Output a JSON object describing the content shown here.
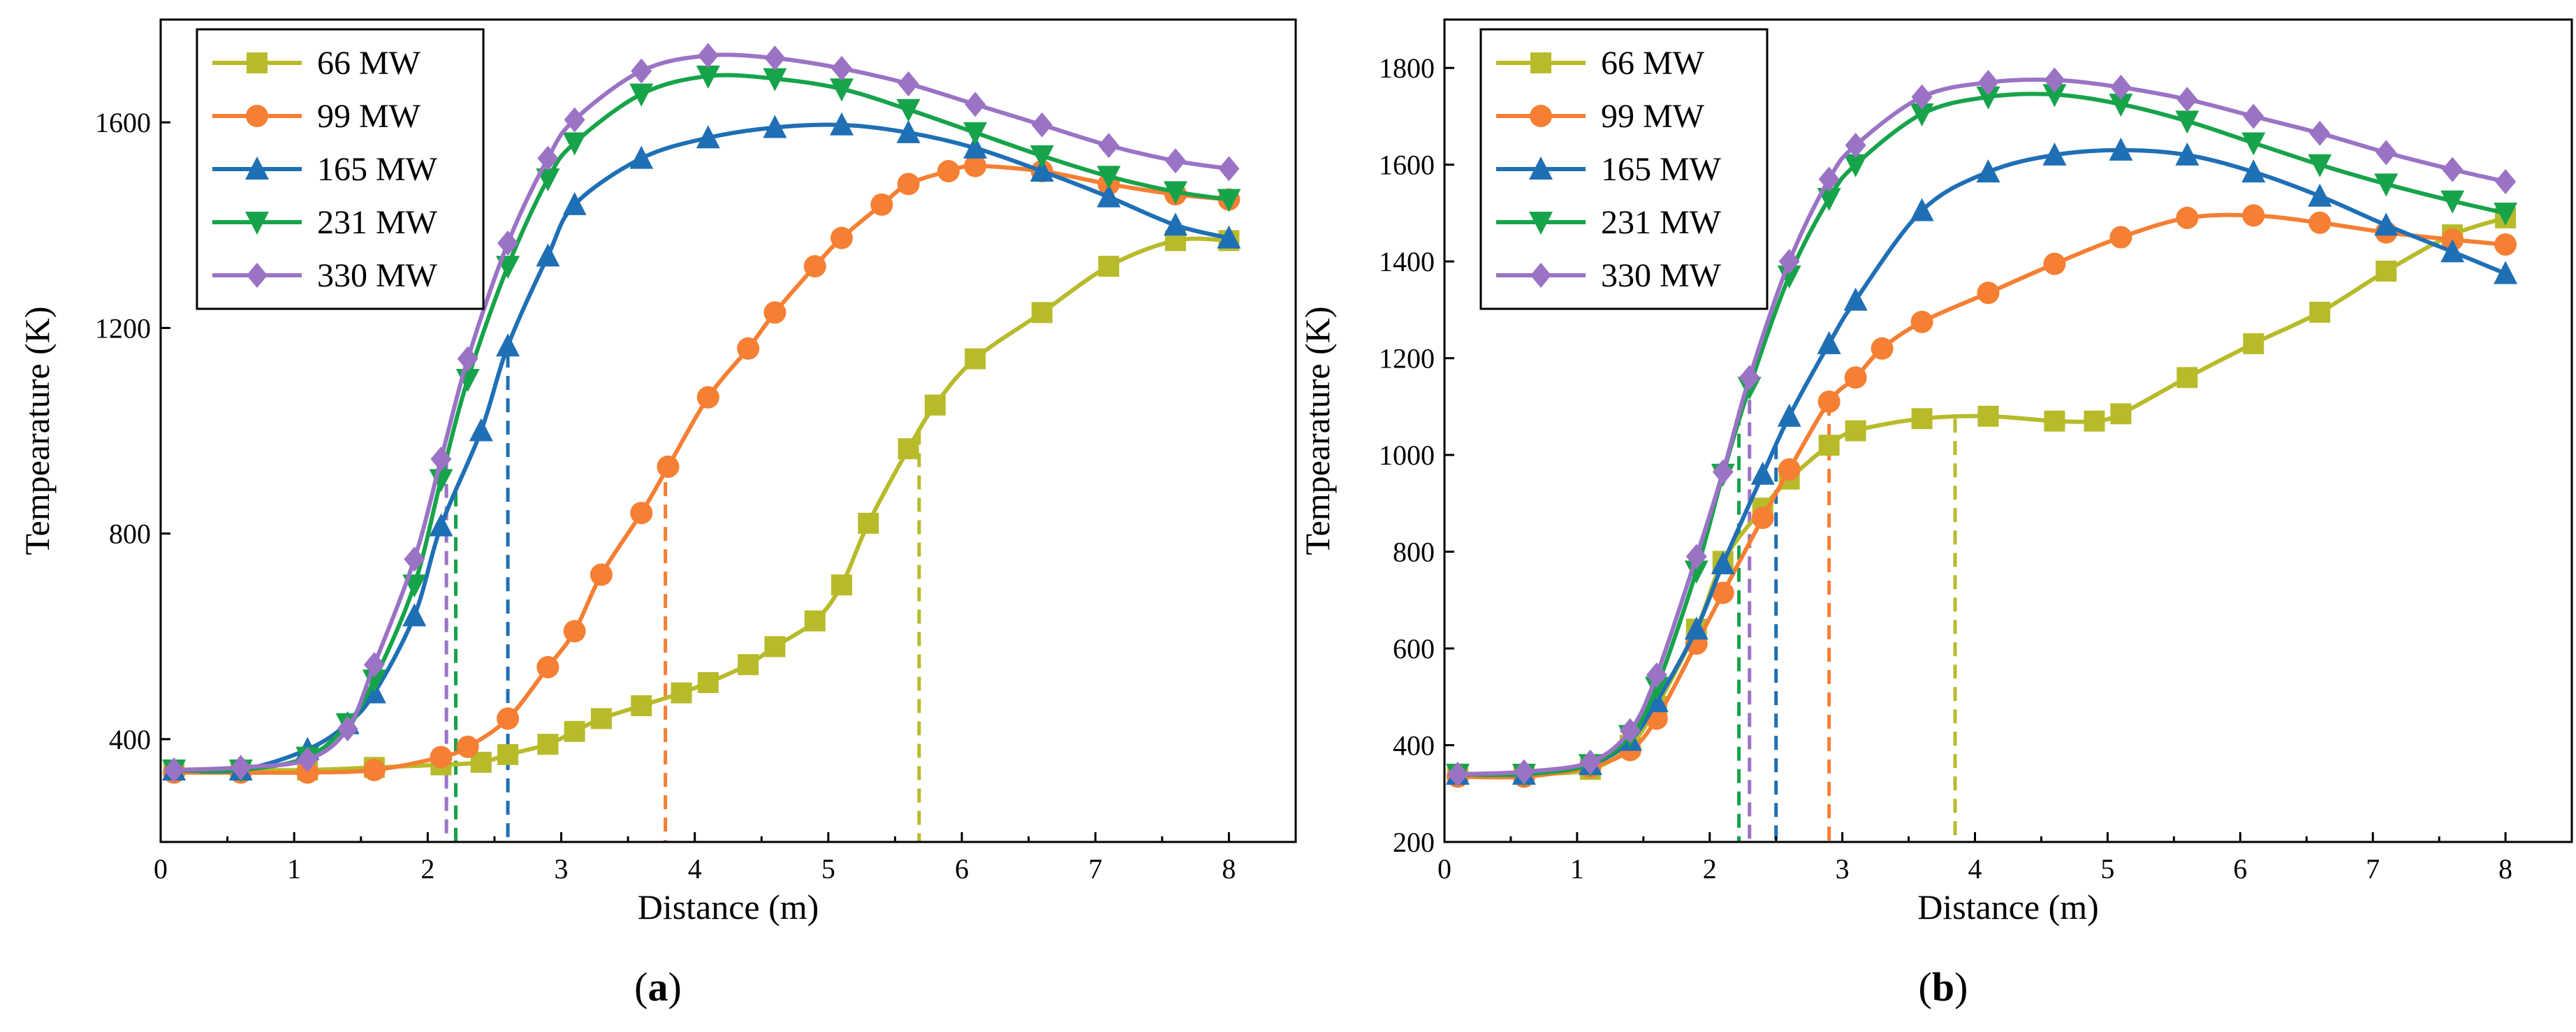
{
  "chart_data": [
    {
      "type": "line",
      "panel_label": "a",
      "xlabel": "Distance (m)",
      "ylabel": "Tempearature (K)",
      "xlim": [
        0,
        8.5
      ],
      "ylim": [
        200,
        1800
      ],
      "xticks": [
        0,
        1,
        2,
        3,
        4,
        5,
        6,
        7,
        8
      ],
      "yticks": [
        400,
        800,
        1200,
        1600
      ],
      "legend_position": "top-left",
      "series": [
        {
          "name": "66 MW",
          "color": "#b7bb2a",
          "marker": "square",
          "x": [
            0.1,
            0.6,
            1.1,
            1.6,
            2.1,
            2.4,
            2.6,
            2.9,
            3.1,
            3.3,
            3.6,
            3.9,
            4.1,
            4.4,
            4.6,
            4.9,
            5.1,
            5.3,
            5.6,
            5.8,
            6.1,
            6.6,
            7.1,
            7.6,
            8.0
          ],
          "y": [
            340,
            340,
            340,
            345,
            350,
            355,
            370,
            390,
            415,
            440,
            465,
            490,
            510,
            545,
            580,
            630,
            700,
            820,
            965,
            1050,
            1140,
            1230,
            1320,
            1370,
            1370
          ]
        },
        {
          "name": "99 MW",
          "color": "#f57f33",
          "marker": "circle",
          "x": [
            0.1,
            0.6,
            1.1,
            1.6,
            2.1,
            2.3,
            2.6,
            2.9,
            3.1,
            3.3,
            3.6,
            3.8,
            4.1,
            4.4,
            4.6,
            4.9,
            5.1,
            5.4,
            5.6,
            5.9,
            6.1,
            6.6,
            7.1,
            7.6,
            8.0
          ],
          "y": [
            335,
            335,
            335,
            340,
            365,
            385,
            440,
            540,
            610,
            720,
            840,
            930,
            1065,
            1160,
            1230,
            1320,
            1375,
            1440,
            1480,
            1505,
            1515,
            1505,
            1480,
            1460,
            1450
          ]
        },
        {
          "name": "165 MW",
          "color": "#1f6fb5",
          "marker": "triangle-up",
          "x": [
            0.1,
            0.6,
            1.1,
            1.4,
            1.6,
            1.9,
            2.1,
            2.4,
            2.6,
            2.9,
            3.1,
            3.6,
            4.1,
            4.6,
            5.1,
            5.6,
            6.1,
            6.6,
            7.1,
            7.6,
            8.0
          ],
          "y": [
            340,
            340,
            380,
            430,
            490,
            640,
            815,
            1000,
            1165,
            1340,
            1440,
            1530,
            1570,
            1590,
            1595,
            1580,
            1550,
            1505,
            1455,
            1400,
            1375
          ]
        },
        {
          "name": "231 MW",
          "color": "#17a34a",
          "marker": "triangle-down",
          "x": [
            0.1,
            0.6,
            1.1,
            1.4,
            1.6,
            1.9,
            2.1,
            2.3,
            2.6,
            2.9,
            3.1,
            3.6,
            4.1,
            4.6,
            5.1,
            5.6,
            6.1,
            6.6,
            7.1,
            7.6,
            8.0
          ],
          "y": [
            340,
            340,
            365,
            430,
            515,
            700,
            905,
            1100,
            1320,
            1490,
            1560,
            1655,
            1690,
            1685,
            1665,
            1625,
            1580,
            1535,
            1495,
            1465,
            1450
          ]
        },
        {
          "name": "330 MW",
          "color": "#9b73c5",
          "marker": "diamond",
          "x": [
            0.1,
            0.6,
            1.1,
            1.4,
            1.6,
            1.9,
            2.1,
            2.3,
            2.6,
            2.9,
            3.1,
            3.6,
            4.1,
            4.6,
            5.1,
            5.6,
            6.1,
            6.6,
            7.1,
            7.6,
            8.0
          ],
          "y": [
            340,
            345,
            360,
            420,
            545,
            750,
            945,
            1140,
            1365,
            1530,
            1605,
            1700,
            1730,
            1725,
            1705,
            1675,
            1635,
            1595,
            1555,
            1525,
            1510
          ]
        }
      ],
      "dashed_markers": [
        {
          "x": 5.68,
          "y": 1000,
          "series": "66 MW"
        },
        {
          "x": 3.78,
          "y": 900,
          "series": "99 MW"
        },
        {
          "x": 2.6,
          "y": 1150,
          "series": "165 MW"
        },
        {
          "x": 2.21,
          "y": 880,
          "series": "231 MW"
        },
        {
          "x": 2.14,
          "y": 940,
          "series": "330 MW"
        }
      ]
    },
    {
      "type": "line",
      "panel_label": "b",
      "xlabel": "Distance (m)",
      "ylabel": "Tempearature (K)",
      "xlim": [
        0,
        8.5
      ],
      "ylim": [
        200,
        1900
      ],
      "xticks": [
        0,
        1,
        2,
        3,
        4,
        5,
        6,
        7,
        8
      ],
      "yticks": [
        200,
        400,
        600,
        800,
        1000,
        1200,
        1400,
        1600,
        1800
      ],
      "legend_position": "top-left",
      "series": [
        {
          "name": "66 MW",
          "color": "#b7bb2a",
          "marker": "square",
          "x": [
            0.1,
            0.6,
            1.1,
            1.4,
            1.6,
            1.9,
            2.1,
            2.4,
            2.6,
            2.9,
            3.1,
            3.6,
            4.1,
            4.6,
            4.9,
            5.1,
            5.6,
            6.1,
            6.6,
            7.1,
            7.6,
            8.0
          ],
          "y": [
            340,
            340,
            350,
            400,
            480,
            640,
            780,
            890,
            950,
            1020,
            1050,
            1075,
            1080,
            1070,
            1070,
            1085,
            1160,
            1230,
            1295,
            1380,
            1455,
            1490
          ]
        },
        {
          "name": "99 MW",
          "color": "#f57f33",
          "marker": "circle",
          "x": [
            0.1,
            0.6,
            1.1,
            1.4,
            1.6,
            1.9,
            2.1,
            2.4,
            2.6,
            2.9,
            3.1,
            3.3,
            3.6,
            4.1,
            4.6,
            5.1,
            5.6,
            6.1,
            6.6,
            7.1,
            7.6,
            8.0
          ],
          "y": [
            335,
            335,
            355,
            390,
            455,
            610,
            715,
            870,
            970,
            1110,
            1160,
            1220,
            1275,
            1335,
            1395,
            1450,
            1490,
            1495,
            1480,
            1460,
            1445,
            1435
          ]
        },
        {
          "name": "165 MW",
          "color": "#1f6fb5",
          "marker": "triangle-up",
          "x": [
            0.1,
            0.6,
            1.1,
            1.4,
            1.6,
            1.9,
            2.1,
            2.4,
            2.6,
            2.9,
            3.1,
            3.6,
            4.1,
            4.6,
            5.1,
            5.6,
            6.1,
            6.6,
            7.1,
            7.6,
            8.0
          ],
          "y": [
            340,
            340,
            360,
            410,
            490,
            640,
            775,
            960,
            1080,
            1230,
            1320,
            1505,
            1585,
            1620,
            1630,
            1620,
            1585,
            1535,
            1475,
            1420,
            1375
          ]
        },
        {
          "name": "231 MW",
          "color": "#17a34a",
          "marker": "triangle-down",
          "x": [
            0.1,
            0.6,
            1.1,
            1.4,
            1.6,
            1.9,
            2.1,
            2.3,
            2.6,
            2.9,
            3.1,
            3.6,
            4.1,
            4.6,
            5.1,
            5.6,
            6.1,
            6.6,
            7.1,
            7.6,
            8.0
          ],
          "y": [
            340,
            340,
            360,
            420,
            520,
            760,
            960,
            1140,
            1370,
            1530,
            1600,
            1705,
            1740,
            1745,
            1725,
            1690,
            1645,
            1600,
            1560,
            1525,
            1500
          ]
        },
        {
          "name": "330 MW",
          "color": "#9b73c5",
          "marker": "diamond",
          "x": [
            0.1,
            0.6,
            1.1,
            1.4,
            1.6,
            1.9,
            2.1,
            2.3,
            2.6,
            2.9,
            3.1,
            3.6,
            4.1,
            4.6,
            5.1,
            5.6,
            6.1,
            6.6,
            7.1,
            7.6,
            8.0
          ],
          "y": [
            340,
            345,
            365,
            430,
            545,
            790,
            965,
            1160,
            1400,
            1570,
            1640,
            1740,
            1770,
            1775,
            1760,
            1735,
            1700,
            1665,
            1625,
            1590,
            1565
          ]
        }
      ],
      "dashed_markers": [
        {
          "x": 3.85,
          "y": 1075,
          "series": "66 MW"
        },
        {
          "x": 2.9,
          "y": 1110,
          "series": "99 MW"
        },
        {
          "x": 2.5,
          "y": 1020,
          "series": "165 MW"
        },
        {
          "x": 2.22,
          "y": 1090,
          "series": "231 MW"
        },
        {
          "x": 2.3,
          "y": 1160,
          "series": "330 MW"
        }
      ]
    }
  ]
}
